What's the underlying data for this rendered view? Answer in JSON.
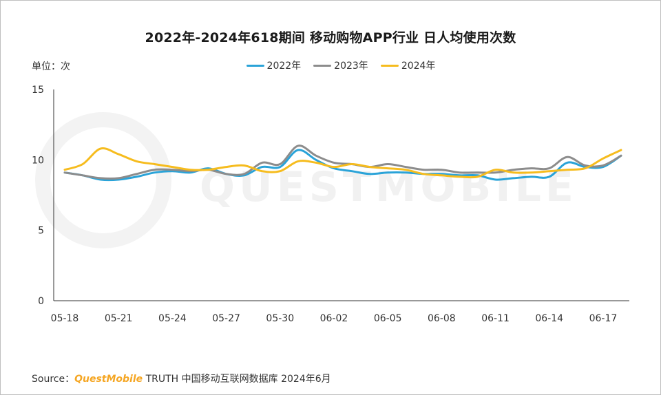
{
  "title": "2022年-2024年618期间 移动购物APP行业 日人均使用次数",
  "unit_label": "单位：次",
  "watermark": "QUESTMOBILE",
  "source": {
    "prefix": "Source：",
    "brand": "QuestMobile",
    "suffix": " TRUTH 中国移动互联网数据库 2024年6月"
  },
  "colors": {
    "2022": "#2aa3d8",
    "2023": "#8c8c8c",
    "2024": "#f6bc1e"
  },
  "chart_data": {
    "type": "line",
    "title": "2022年-2024年618期间 移动购物APP行业 日人均使用次数",
    "ylabel": "单位：次",
    "ylim": [
      0,
      15
    ],
    "yticks": [
      0,
      5,
      10,
      15
    ],
    "xticks": [
      "05-18",
      "05-21",
      "05-24",
      "05-27",
      "05-30",
      "06-02",
      "06-05",
      "06-08",
      "06-11",
      "06-14",
      "06-17"
    ],
    "x": [
      "05-18",
      "05-19",
      "05-20",
      "05-21",
      "05-22",
      "05-23",
      "05-24",
      "05-25",
      "05-26",
      "05-27",
      "05-28",
      "05-29",
      "05-30",
      "05-31",
      "06-01",
      "06-02",
      "06-03",
      "06-04",
      "06-05",
      "06-06",
      "06-07",
      "06-08",
      "06-09",
      "06-10",
      "06-11",
      "06-12",
      "06-13",
      "06-14",
      "06-15",
      "06-16",
      "06-17",
      "06-18"
    ],
    "grid": false,
    "legend_position": "top-center",
    "series": [
      {
        "name": "2022年",
        "values": [
          9.1,
          8.9,
          8.6,
          8.6,
          8.8,
          9.1,
          9.2,
          9.1,
          9.4,
          9.0,
          8.9,
          9.5,
          9.5,
          10.7,
          10.0,
          9.4,
          9.2,
          9.0,
          9.1,
          9.1,
          9.0,
          9.0,
          8.9,
          8.9,
          8.6,
          8.7,
          8.8,
          8.8,
          9.8,
          9.5,
          9.5,
          10.3
        ]
      },
      {
        "name": "2023年",
        "values": [
          9.1,
          8.9,
          8.7,
          8.7,
          9.0,
          9.3,
          9.3,
          9.2,
          9.3,
          9.0,
          9.0,
          9.8,
          9.7,
          11.0,
          10.3,
          9.8,
          9.7,
          9.5,
          9.7,
          9.5,
          9.3,
          9.3,
          9.1,
          9.1,
          9.1,
          9.3,
          9.4,
          9.4,
          10.2,
          9.6,
          9.6,
          10.3
        ]
      },
      {
        "name": "2024年",
        "values": [
          9.3,
          9.7,
          10.8,
          10.4,
          9.9,
          9.7,
          9.5,
          9.3,
          9.3,
          9.5,
          9.6,
          9.2,
          9.2,
          9.9,
          9.8,
          9.5,
          9.7,
          9.5,
          9.4,
          9.3,
          9.0,
          8.9,
          8.8,
          8.8,
          9.3,
          9.1,
          9.1,
          9.2,
          9.3,
          9.4,
          10.1,
          10.7
        ]
      }
    ]
  }
}
